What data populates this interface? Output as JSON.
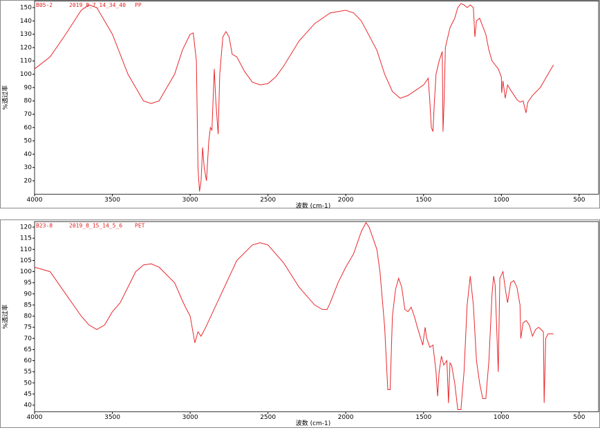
{
  "chart_data": [
    {
      "type": "line",
      "annotations": [
        "B05-2",
        "2019_8_7_14_34_40",
        "PP"
      ],
      "x_label": "波数 (cm-1)",
      "y_label": "%透过率",
      "color": "#e8262a",
      "xlim": [
        4000,
        375
      ],
      "xticks": [
        4000,
        3500,
        3000,
        2500,
        2000,
        1500,
        1000,
        500
      ],
      "ylim": [
        10,
        155
      ],
      "yticks": [
        20,
        30,
        40,
        50,
        60,
        70,
        80,
        90,
        100,
        110,
        120,
        130,
        140,
        150
      ],
      "x": [
        4000,
        3900,
        3800,
        3700,
        3650,
        3600,
        3500,
        3400,
        3300,
        3250,
        3200,
        3100,
        3050,
        3000,
        2980,
        2960,
        2950,
        2940,
        2930,
        2920,
        2910,
        2895,
        2880,
        2870,
        2860,
        2845,
        2835,
        2820,
        2810,
        2790,
        2770,
        2750,
        2730,
        2700,
        2650,
        2600,
        2550,
        2500,
        2450,
        2400,
        2300,
        2200,
        2100,
        2000,
        1950,
        1900,
        1800,
        1750,
        1700,
        1650,
        1600,
        1550,
        1500,
        1470,
        1460,
        1450,
        1440,
        1430,
        1420,
        1400,
        1380,
        1375,
        1368,
        1360,
        1330,
        1300,
        1280,
        1260,
        1240,
        1220,
        1200,
        1180,
        1170,
        1160,
        1140,
        1100,
        1080,
        1060,
        1040,
        1020,
        1000,
        998,
        990,
        975,
        960,
        940,
        900,
        880,
        860,
        842,
        830,
        800,
        750,
        700,
        665
      ],
      "values": [
        104,
        113,
        130,
        148,
        152,
        150,
        130,
        100,
        80,
        78,
        80,
        100,
        118,
        130,
        131,
        110,
        30,
        12,
        20,
        45,
        30,
        20,
        50,
        60,
        58,
        104,
        80,
        55,
        100,
        128,
        132,
        128,
        115,
        113,
        102,
        94,
        92,
        93,
        98,
        106,
        125,
        138,
        146,
        148,
        146,
        140,
        118,
        100,
        87,
        82,
        84,
        88,
        92,
        97,
        80,
        60,
        57,
        80,
        100,
        110,
        117,
        57,
        80,
        120,
        135,
        142,
        150,
        153,
        152,
        150,
        152,
        150,
        128,
        140,
        142,
        130,
        118,
        110,
        107,
        104,
        98,
        86,
        95,
        82,
        92,
        88,
        81,
        79,
        80,
        71,
        79,
        84,
        90,
        100,
        107
      ]
    },
    {
      "type": "line",
      "annotations": [
        "B23-8",
        "2019_8_15_14_5_6",
        "PET"
      ],
      "x_label": "波数 (cm-1)",
      "y_label": "%透过率",
      "color": "#e8262a",
      "xlim": [
        4000,
        375
      ],
      "xticks": [
        4000,
        3500,
        3000,
        2500,
        2000,
        1500,
        1000,
        500
      ],
      "ylim": [
        37,
        122.5
      ],
      "yticks": [
        40,
        45,
        50,
        55,
        60,
        65,
        70,
        75,
        80,
        85,
        90,
        95,
        100,
        105,
        110,
        115,
        120
      ],
      "x": [
        4000,
        3900,
        3800,
        3700,
        3650,
        3600,
        3550,
        3500,
        3450,
        3400,
        3350,
        3300,
        3250,
        3200,
        3100,
        3050,
        3030,
        3000,
        2970,
        2950,
        2930,
        2900,
        2800,
        2700,
        2600,
        2550,
        2500,
        2400,
        2300,
        2200,
        2150,
        2120,
        2100,
        2050,
        2000,
        1950,
        1900,
        1870,
        1850,
        1800,
        1780,
        1750,
        1730,
        1715,
        1700,
        1680,
        1660,
        1640,
        1620,
        1600,
        1580,
        1560,
        1540,
        1505,
        1490,
        1480,
        1460,
        1440,
        1420,
        1410,
        1400,
        1385,
        1370,
        1350,
        1340,
        1330,
        1320,
        1300,
        1280,
        1260,
        1240,
        1220,
        1200,
        1180,
        1160,
        1140,
        1120,
        1100,
        1080,
        1060,
        1050,
        1040,
        1020,
        1010,
        990,
        970,
        960,
        940,
        920,
        900,
        880,
        875,
        860,
        840,
        820,
        800,
        780,
        760,
        730,
        725,
        715,
        700,
        665
      ],
      "values": [
        102,
        100,
        90,
        80,
        76,
        74,
        76,
        82,
        86,
        93,
        100,
        103,
        103.5,
        102,
        95,
        87,
        84,
        80,
        68,
        73,
        71,
        75,
        90,
        105,
        112,
        113,
        112,
        104,
        93,
        85,
        83,
        83,
        86,
        95,
        102,
        108,
        118,
        122,
        120,
        110,
        100,
        75,
        47,
        47,
        80,
        92,
        97,
        93,
        83,
        82,
        84,
        80,
        75,
        67,
        75,
        70,
        66,
        67,
        55,
        44,
        55,
        62,
        58,
        60,
        41,
        59,
        58,
        50,
        38,
        38,
        55,
        85,
        98,
        85,
        60,
        50,
        43,
        43,
        60,
        90,
        98,
        94,
        55,
        97,
        100,
        90,
        86,
        95,
        96,
        93,
        85,
        70,
        77,
        78,
        76,
        71,
        74,
        75,
        73,
        41,
        70,
        72,
        72
      ]
    }
  ]
}
